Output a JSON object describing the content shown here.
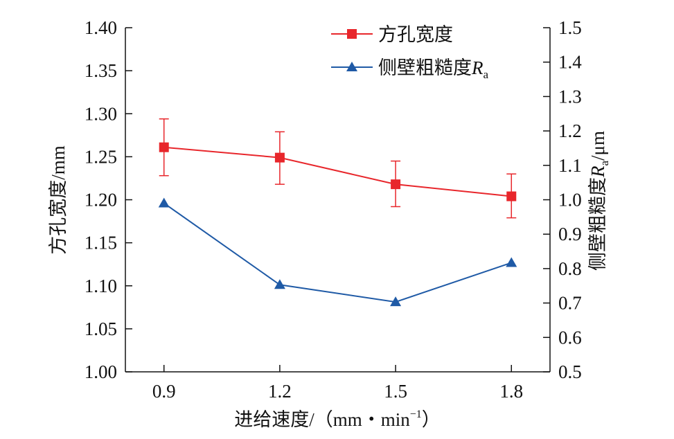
{
  "chart_data": {
    "type": "line",
    "xlabel": "进给速度/（mm・min",
    "xlabel_sup": "−1",
    "xlabel_close": "）",
    "ylabel_left": "方孔宽度/mm",
    "ylabel_right_pre": "侧壁粗糙度",
    "ylabel_right_var": "R",
    "ylabel_right_sub": "a",
    "ylabel_right_unit": "/μm",
    "x": [
      0.9,
      1.2,
      1.5,
      1.8
    ],
    "x_tick_labels": [
      "0.9",
      "1.2",
      "1.5",
      "1.8"
    ],
    "xlim": [
      0.8,
      1.9
    ],
    "ylim_left": [
      1.0,
      1.4
    ],
    "left_tick_labels": [
      "1.00",
      "1.05",
      "1.10",
      "1.15",
      "1.20",
      "1.25",
      "1.30",
      "1.35",
      "1.40"
    ],
    "ylim_right": [
      0.5,
      1.5
    ],
    "right_tick_labels": [
      "0.5",
      "0.6",
      "0.7",
      "0.8",
      "0.9",
      "1.0",
      "1.1",
      "1.2",
      "1.3",
      "1.4",
      "1.5"
    ],
    "legend_position": "top-right",
    "series": [
      {
        "name": "方孔宽度",
        "axis": "left",
        "color": "#e8262b",
        "marker": "square",
        "values": [
          1.261,
          1.249,
          1.218,
          1.204
        ],
        "err_low": [
          1.228,
          1.218,
          1.192,
          1.179
        ],
        "err_high": [
          1.294,
          1.279,
          1.245,
          1.23
        ]
      },
      {
        "name_pre": "侧壁粗糙度",
        "name_var": "R",
        "name_sub": "a",
        "axis": "right",
        "color": "#1f5aa6",
        "marker": "triangle",
        "values": [
          0.99,
          0.753,
          0.703,
          0.817
        ]
      }
    ]
  }
}
